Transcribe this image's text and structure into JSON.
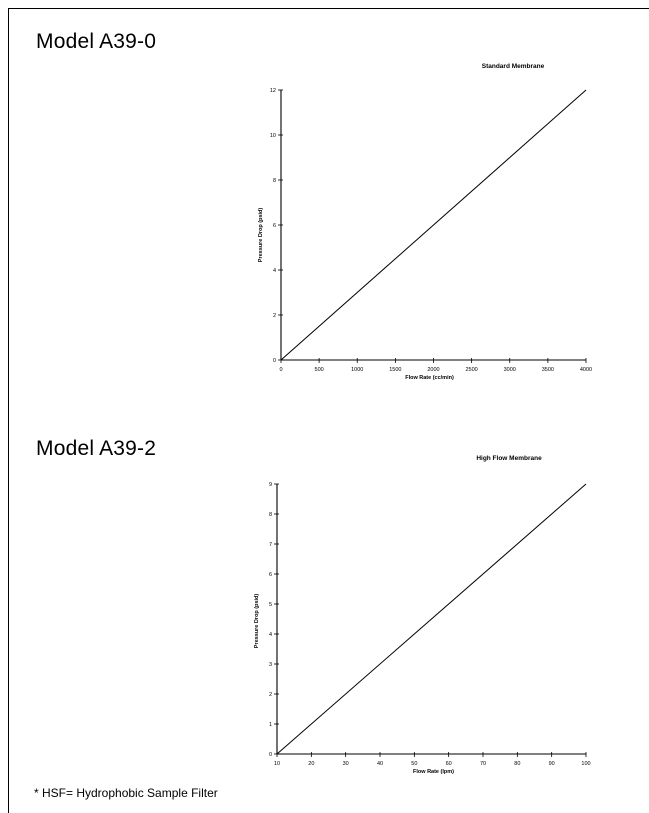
{
  "page": {
    "footnote": "* HSF= Hydrophobic Sample Filter"
  },
  "chart_data": [
    {
      "type": "line",
      "model": "Model A39-0",
      "title": "Standard Membrane",
      "xlabel": "Flow Rate (cc/min)",
      "ylabel": "Pressure Drop (psid)",
      "xlim": [
        0,
        4000
      ],
      "ylim": [
        0,
        12
      ],
      "xticks": [
        0,
        500,
        1000,
        1500,
        2000,
        2500,
        3000,
        3500,
        4000
      ],
      "yticks": [
        0,
        2,
        4,
        6,
        8,
        10,
        12
      ],
      "grid": false,
      "series": [
        {
          "x": [
            0,
            4000
          ],
          "y": [
            0,
            12
          ]
        }
      ]
    },
    {
      "type": "line",
      "model": "Model A39-2",
      "title": "High Flow Membrane",
      "xlabel": "Flow Rate (lpm)",
      "ylabel": "Pressure Drop (psid)",
      "xlim": [
        10,
        100
      ],
      "ylim": [
        0,
        9
      ],
      "xticks": [
        10,
        20,
        30,
        40,
        50,
        60,
        70,
        80,
        90,
        100
      ],
      "yticks": [
        0,
        1,
        2,
        3,
        4,
        5,
        6,
        7,
        8,
        9
      ],
      "grid": false,
      "series": [
        {
          "x": [
            10,
            100
          ],
          "y": [
            0,
            9
          ]
        }
      ]
    }
  ]
}
